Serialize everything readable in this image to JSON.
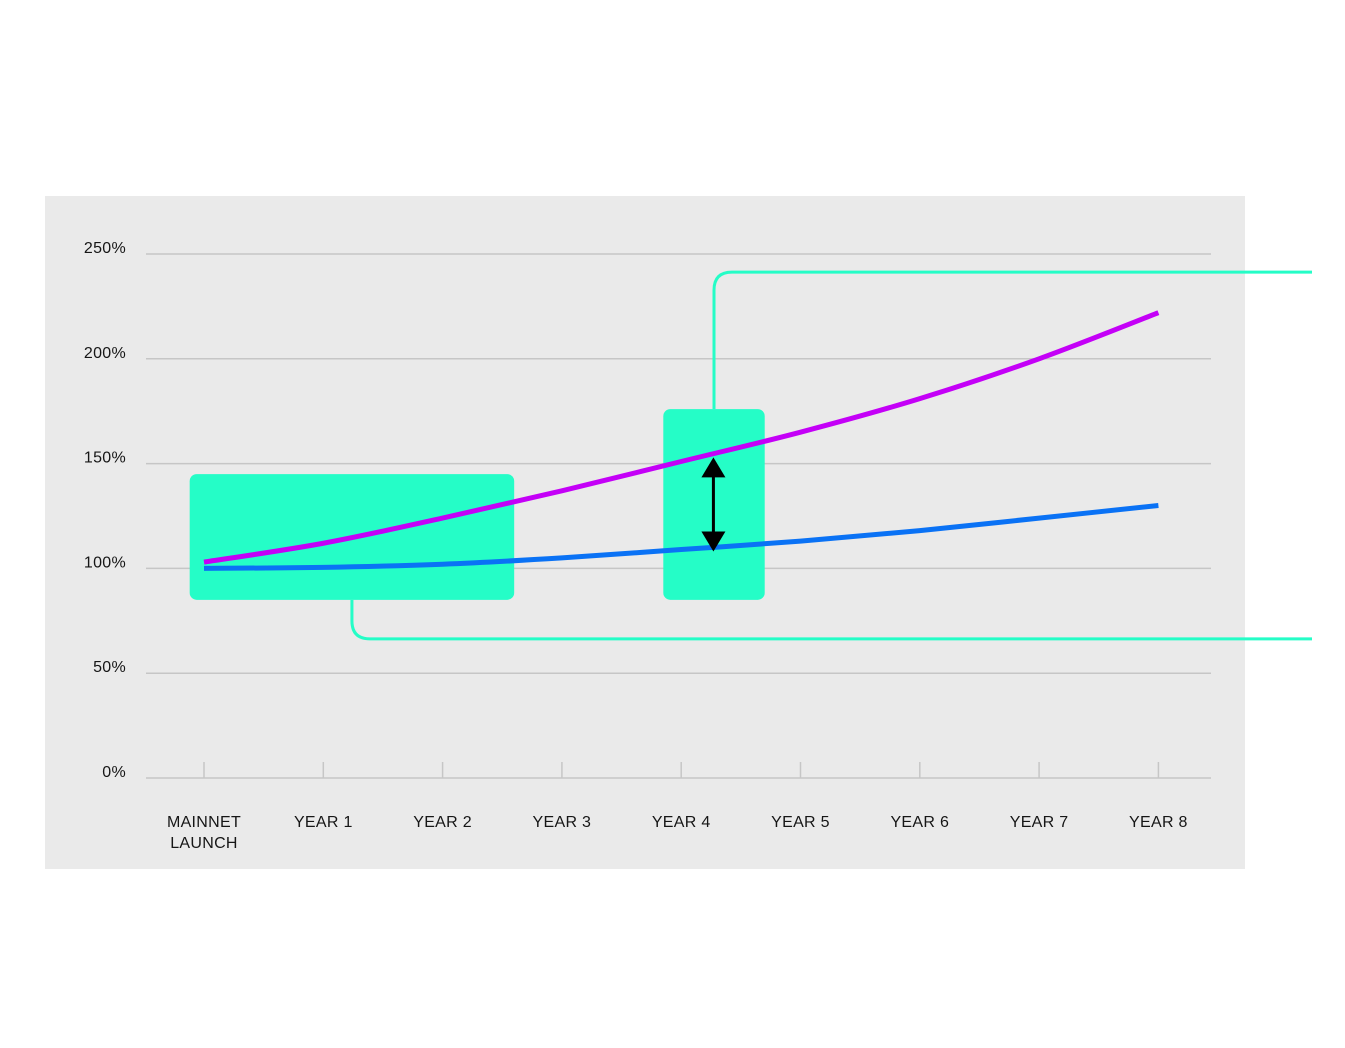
{
  "colors": {
    "background": "#ffffff",
    "panel": "#eaeaea",
    "grid": "#c6c6c6",
    "accent": "#25fdc7",
    "series_magenta": "#c400f7",
    "series_blue": "#0a72f5",
    "arrow": "#000000",
    "text": "#161616"
  },
  "chart_data": {
    "type": "line",
    "title": "",
    "xlabel": "",
    "ylabel": "",
    "categories": [
      "MAINNET\nLAUNCH",
      "YEAR 1",
      "YEAR 2",
      "YEAR 3",
      "YEAR 4",
      "YEAR 5",
      "YEAR 6",
      "YEAR 7",
      "YEAR 8"
    ],
    "category_lines": [
      [
        "MAINNET",
        "LAUNCH"
      ],
      [
        "YEAR 1"
      ],
      [
        "YEAR 2"
      ],
      [
        "YEAR 3"
      ],
      [
        "YEAR 4"
      ],
      [
        "YEAR 5"
      ],
      [
        "YEAR 6"
      ],
      [
        "YEAR 7"
      ],
      [
        "YEAR 8"
      ]
    ],
    "y_ticks": [
      "0%",
      "50%",
      "100%",
      "150%",
      "200%",
      "250%"
    ],
    "ylim": [
      0,
      250
    ],
    "grid": true,
    "legend": "none",
    "series": [
      {
        "color": "#c400f7",
        "values": [
          103,
          112,
          124,
          137,
          151,
          165,
          181,
          200,
          222
        ]
      },
      {
        "color": "#0a72f5",
        "values": [
          100,
          100.5,
          102,
          105,
          109,
          113,
          118,
          124,
          130
        ]
      }
    ],
    "annotations": {
      "highlight_ranges": [
        {
          "x_from": -0.12,
          "x_to": 2.6,
          "y_from": 85,
          "y_to": 145
        },
        {
          "x_from": 3.85,
          "x_to": 4.7,
          "y_from": 85,
          "y_to": 176
        }
      ],
      "gap_arrow": {
        "x": 4.27,
        "y_from": 109,
        "y_to": 152
      }
    }
  }
}
